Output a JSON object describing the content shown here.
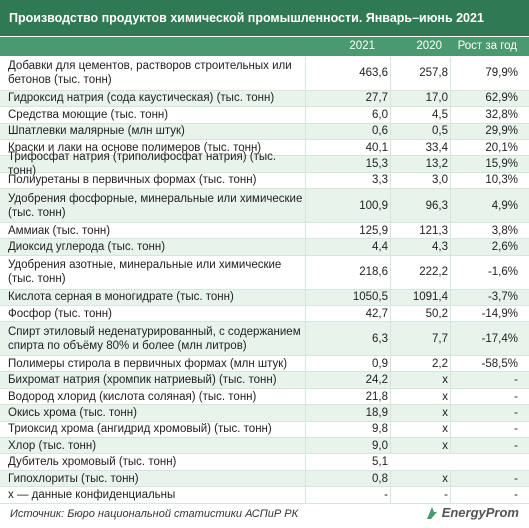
{
  "header": {
    "title": "Производство продуктов химической промышленности. Январь–июнь 2021"
  },
  "table": {
    "columns": [
      "2021",
      "2020",
      "Рост за год"
    ],
    "rows": [
      [
        "Добавки для цементов, растворов строительных или бетонов (тыс. тонн)",
        "463,6",
        "257,8",
        "79,9%"
      ],
      [
        "Гидроксид натрия (сода каустическая) (тыс. тонн)",
        "27,7",
        "17,0",
        "62,9%"
      ],
      [
        "Средства моющие (тыс. тонн)",
        "6,0",
        "4,5",
        "32,8%"
      ],
      [
        "Шпатлевки малярные (млн штук)",
        "0,6",
        "0,5",
        "29,9%"
      ],
      [
        "Краски и лаки на основе полимеров (тыс. тонн)",
        "40,1",
        "33,4",
        "20,1%"
      ],
      [
        "Трифосфат натрия (триполифосфат натрия) (тыс. тонн)",
        "15,3",
        "13,2",
        "15,9%"
      ],
      [
        "Полиуретаны в первичных формах (тыс. тонн)",
        "3,3",
        "3,0",
        "10,3%"
      ],
      [
        "Удобрения фосфорные, минеральные или химические (тыс. тонн)",
        "100,9",
        "96,3",
        "4,9%"
      ],
      [
        "Аммиак (тыс. тонн)",
        "125,9",
        "121,3",
        "3,8%"
      ],
      [
        "Диоксид углерода (тыс. тонн)",
        "4,4",
        "4,3",
        "2,6%"
      ],
      [
        "Удобрения азотные, минеральные или химические (тыс. тонн)",
        "218,6",
        "222,2",
        "-1,6%"
      ],
      [
        "Кислота серная в моногидрате (тыс. тонн)",
        "1050,5",
        "1091,4",
        "-3,7%"
      ],
      [
        "Фосфор (тыс. тонн)",
        "42,7",
        "50,2",
        "-14,9%"
      ],
      [
        "Спирт этиловый неденатурированный, с содержанием спирта по объёму 80% и более (млн литров)",
        "6,3",
        "7,7",
        "-17,4%"
      ],
      [
        "Полимеры стирола в первичных формах (млн штук)",
        "0,9",
        "2,2",
        "-58,5%"
      ],
      [
        "Бихромат натрия (хромпик натриевый) (тыс. тонн)",
        "24,2",
        "х",
        "-"
      ],
      [
        "Водород хлорид (кислота соляная) (тыс. тонн)",
        "21,8",
        "х",
        "-"
      ],
      [
        "Окись хрома (тыс. тонн)",
        "18,9",
        "х",
        "-"
      ],
      [
        "Триоксид хрома (ангидрид хромовый) (тыс. тонн)",
        "9,8",
        "х",
        "-"
      ],
      [
        "Хлор (тыс. тонн)",
        "9,0",
        "х",
        "-"
      ],
      [
        "Дубитель хромовый (тыс. тонн)",
        "5,1",
        null,
        null
      ],
      [
        "Гипохлориты (тыс. тонн)",
        "0,8",
        "х",
        "-"
      ],
      [
        "х — данные конфиденциальны",
        "-",
        "-",
        "-"
      ]
    ]
  },
  "footer": {
    "source": "Источник: Бюро национальной статистики АСПиР РК",
    "logo": "EnergyProm"
  }
}
